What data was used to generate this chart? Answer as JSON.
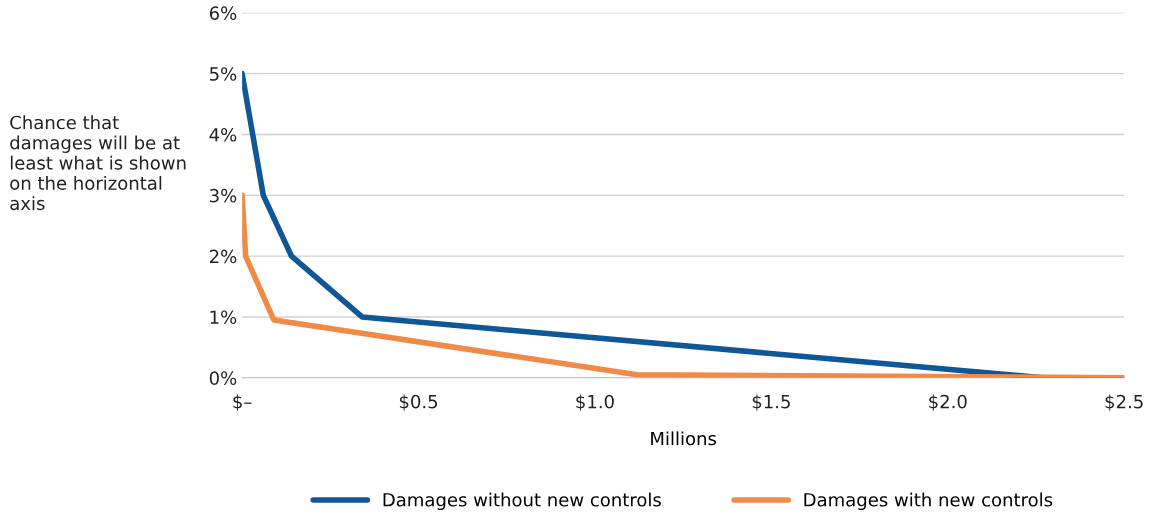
{
  "chart_data": {
    "type": "line",
    "xlabel": "Millions",
    "ylabel": "Chance that damages will be at least what is shown on the horizontal axis",
    "xlim": [
      0,
      2.5
    ],
    "xticks": [
      {
        "value": 0,
        "label": "$–"
      },
      {
        "value": 0.5,
        "label": "$0.5"
      },
      {
        "value": 1.0,
        "label": "$1.0"
      },
      {
        "value": 1.5,
        "label": "$1.5"
      },
      {
        "value": 2.0,
        "label": "$2.0"
      },
      {
        "value": 2.5,
        "label": "$2.5"
      }
    ],
    "ylim": [
      0,
      6
    ],
    "yticks": [
      {
        "value": 0,
        "label": "0%"
      },
      {
        "value": 1,
        "label": "1%"
      },
      {
        "value": 2,
        "label": "2%"
      },
      {
        "value": 3,
        "label": "3%"
      },
      {
        "value": 4,
        "label": "4%"
      },
      {
        "value": 5,
        "label": "5%"
      },
      {
        "value": 6,
        "label": "6%"
      }
    ],
    "grid": "y",
    "legend": "bottom",
    "marker": "none",
    "line_style": "solid",
    "series": [
      {
        "name": "Damages without new controls",
        "color": "#0f5797",
        "x": [
          0,
          0.03,
          0.06,
          0.14,
          0.34,
          2.27,
          2.5
        ],
        "values": [
          5,
          4,
          3,
          2,
          1,
          0,
          0
        ]
      },
      {
        "name": "Damages with new controls",
        "color": "#ef8a47",
        "x": [
          0,
          0.01,
          0.09,
          1.12,
          2.5
        ],
        "values": [
          3,
          2,
          0.95,
          0.05,
          0
        ]
      }
    ]
  }
}
